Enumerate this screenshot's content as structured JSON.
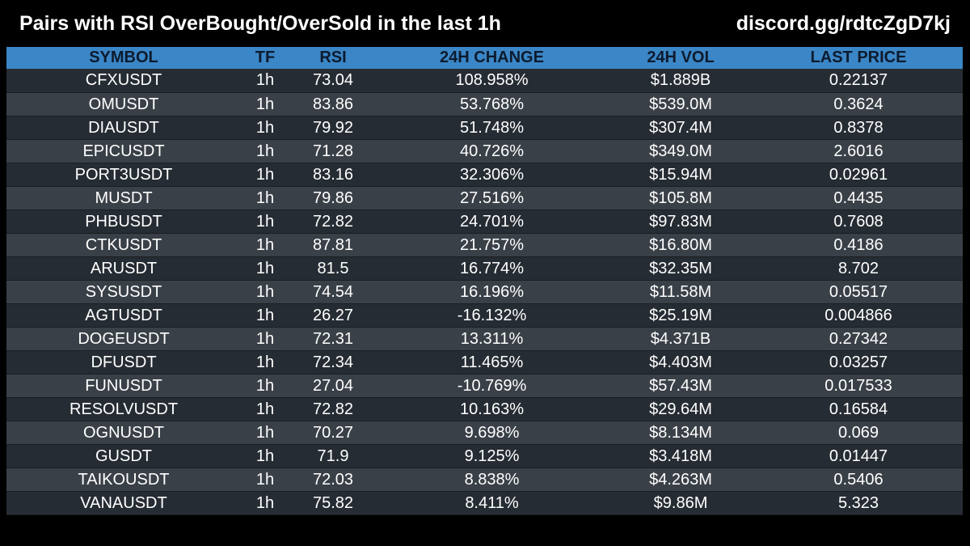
{
  "header": {
    "title": "Pairs with RSI OverBought/OverSold in the last 1h",
    "discord": "discord.gg/rdtcZgD7kj"
  },
  "table": {
    "columns": [
      "SYMBOL",
      "TF",
      "RSI",
      "24H CHANGE",
      "24H VOL",
      "LAST PRICE"
    ],
    "rows": [
      [
        "CFXUSDT",
        "1h",
        "73.04",
        "108.958%",
        "$1.889B",
        "0.22137"
      ],
      [
        "OMUSDT",
        "1h",
        "83.86",
        "53.768%",
        "$539.0M",
        "0.3624"
      ],
      [
        "DIAUSDT",
        "1h",
        "79.92",
        "51.748%",
        "$307.4M",
        "0.8378"
      ],
      [
        "EPICUSDT",
        "1h",
        "71.28",
        "40.726%",
        "$349.0M",
        "2.6016"
      ],
      [
        "PORT3USDT",
        "1h",
        "83.16",
        "32.306%",
        "$15.94M",
        "0.02961"
      ],
      [
        "MUSDT",
        "1h",
        "79.86",
        "27.516%",
        "$105.8M",
        "0.4435"
      ],
      [
        "PHBUSDT",
        "1h",
        "72.82",
        "24.701%",
        "$97.83M",
        "0.7608"
      ],
      [
        "CTKUSDT",
        "1h",
        "87.81",
        "21.757%",
        "$16.80M",
        "0.4186"
      ],
      [
        "ARUSDT",
        "1h",
        "81.5",
        "16.774%",
        "$32.35M",
        "8.702"
      ],
      [
        "SYSUSDT",
        "1h",
        "74.54",
        "16.196%",
        "$11.58M",
        "0.05517"
      ],
      [
        "AGTUSDT",
        "1h",
        "26.27",
        "-16.132%",
        "$25.19M",
        "0.004866"
      ],
      [
        "DOGEUSDT",
        "1h",
        "72.31",
        "13.311%",
        "$4.371B",
        "0.27342"
      ],
      [
        "DFUSDT",
        "1h",
        "72.34",
        "11.465%",
        "$4.403M",
        "0.03257"
      ],
      [
        "FUNUSDT",
        "1h",
        "27.04",
        "-10.769%",
        "$57.43M",
        "0.017533"
      ],
      [
        "RESOLVUSDT",
        "1h",
        "72.82",
        "10.163%",
        "$29.64M",
        "0.16584"
      ],
      [
        "OGNUSDT",
        "1h",
        "70.27",
        "9.698%",
        "$8.134M",
        "0.069"
      ],
      [
        "GUSDT",
        "1h",
        "71.9",
        "9.125%",
        "$3.418M",
        "0.01447"
      ],
      [
        "TAIKOUSDT",
        "1h",
        "72.03",
        "8.838%",
        "$4.263M",
        "0.5406"
      ],
      [
        "VANAUSDT",
        "1h",
        "75.82",
        "8.411%",
        "$9.86M",
        "5.323"
      ]
    ]
  },
  "colors": {
    "background": "#000000",
    "header_row": "#3b86c6",
    "row_dark": "#262c33",
    "row_light": "#3a4047",
    "text": "#ffffff"
  }
}
